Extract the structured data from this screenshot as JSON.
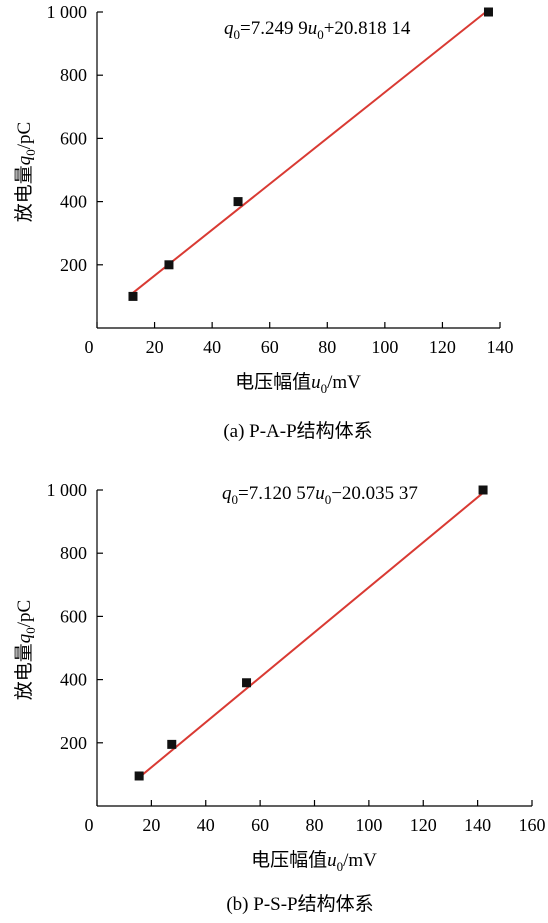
{
  "chart_data": [
    {
      "type": "scatter",
      "caption": "(a) P-A-P结构体系",
      "xlabel": "电压幅值u0/mV",
      "xlabel_parts": {
        "prefix": "电压幅值",
        "var": "u",
        "sub": "0",
        "suffix": "/mV"
      },
      "ylabel": "放电量q0/pC",
      "ylabel_parts": {
        "prefix": "放电量",
        "var": "q",
        "sub": "0",
        "suffix": "/pC"
      },
      "xlim": [
        0,
        140
      ],
      "ylim": [
        0,
        1000
      ],
      "xticks": [
        0,
        20,
        40,
        60,
        80,
        100,
        120,
        140
      ],
      "yticks": [
        200,
        400,
        600,
        800,
        1000
      ],
      "xtick_labels": [
        "0",
        "20",
        "40",
        "60",
        "80",
        "100",
        "120",
        "140"
      ],
      "ytick_labels": [
        "200",
        "400",
        "600",
        "800",
        "1 000"
      ],
      "points": [
        {
          "x": 12.5,
          "y": 100
        },
        {
          "x": 25,
          "y": 200
        },
        {
          "x": 49,
          "y": 400
        },
        {
          "x": 136,
          "y": 1000
        }
      ],
      "fit": {
        "slope": 7.2499,
        "intercept": 20.81814,
        "x_range": [
          12.5,
          136
        ]
      },
      "equation": {
        "lhs_var": "q",
        "lhs_sub": "0",
        "mid": "=7.249 9",
        "rhs_var": "u",
        "rhs_sub": "0",
        "tail": "+20.818 14",
        "full": "q0=7.249 9u0+20.818 14"
      },
      "colors": {
        "fit_line": "#d93a33",
        "marker": "#111111"
      }
    },
    {
      "type": "scatter",
      "caption": "(b) P-S-P结构体系",
      "xlabel": "电压幅值u0/mV",
      "xlabel_parts": {
        "prefix": "电压幅值",
        "var": "u",
        "sub": "0",
        "suffix": "/mV"
      },
      "ylabel": "放电量q0/pC",
      "ylabel_parts": {
        "prefix": "放电量",
        "var": "q",
        "sub": "0",
        "suffix": "/pC"
      },
      "xlim": [
        0,
        160
      ],
      "ylim": [
        0,
        1000
      ],
      "xticks": [
        0,
        20,
        40,
        60,
        80,
        100,
        120,
        140,
        160
      ],
      "yticks": [
        200,
        400,
        600,
        800,
        1000
      ],
      "xtick_labels": [
        "0",
        "20",
        "40",
        "60",
        "80",
        "100",
        "120",
        "140",
        "160"
      ],
      "ytick_labels": [
        "200",
        "400",
        "600",
        "800",
        "1 000"
      ],
      "points": [
        {
          "x": 15.5,
          "y": 95
        },
        {
          "x": 27.5,
          "y": 195
        },
        {
          "x": 55,
          "y": 390
        },
        {
          "x": 142,
          "y": 1000
        }
      ],
      "fit": {
        "slope": 7.12057,
        "intercept": -20.03537,
        "x_range": [
          15.5,
          142
        ]
      },
      "equation": {
        "lhs_var": "q",
        "lhs_sub": "0",
        "mid": "=7.120 57",
        "rhs_var": "u",
        "rhs_sub": "0",
        "tail": "−20.035 37",
        "full": "q0=7.120 57u0−20.035 37"
      },
      "colors": {
        "fit_line": "#d93a33",
        "marker": "#111111"
      }
    }
  ]
}
